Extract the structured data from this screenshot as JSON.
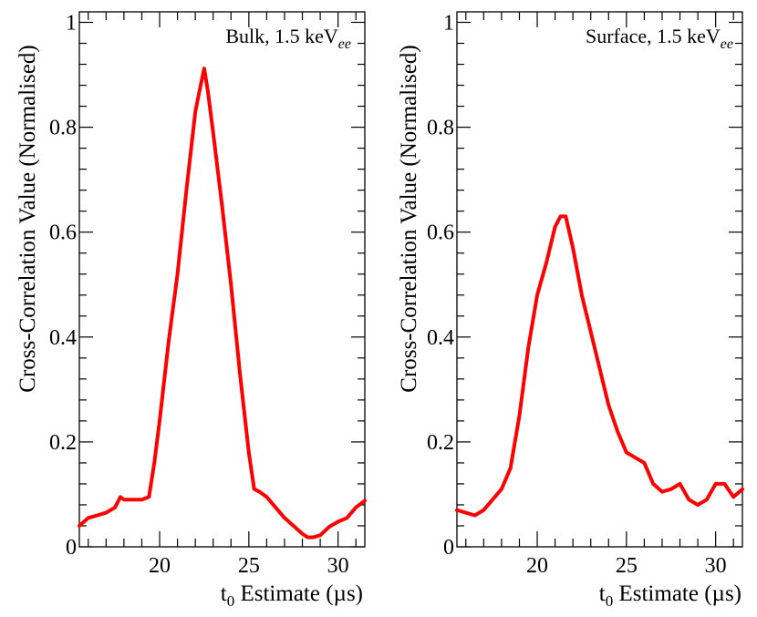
{
  "chart_data": [
    {
      "type": "line",
      "annotation": "Bulk, 1.5 keV",
      "annotation_subscript": "ee",
      "ylabel": "Cross-Correlation Value (Normalised)",
      "xlabel_main": "t",
      "xlabel_sub": "0",
      "xlabel_rest": " Estimate (µs)",
      "xlim": [
        15.5,
        31.5
      ],
      "ylim": [
        0,
        1.02
      ],
      "xticks": [
        20,
        25,
        30
      ],
      "yticks": [
        0,
        0.2,
        0.4,
        0.6,
        0.8,
        1
      ],
      "ytick_labels": [
        "0",
        "0.2",
        "0.4",
        "0.6",
        "0.8",
        "1"
      ],
      "grid": false,
      "color": "#ff0000",
      "x": [
        15.5,
        16.0,
        16.5,
        17.0,
        17.5,
        17.8,
        18.0,
        18.5,
        19.0,
        19.4,
        19.7,
        20.0,
        20.5,
        21.0,
        21.5,
        22.0,
        22.3,
        22.5,
        22.7,
        23.0,
        23.5,
        24.0,
        24.5,
        25.0,
        25.3,
        25.6,
        26.0,
        26.5,
        27.0,
        27.5,
        28.0,
        28.3,
        28.6,
        29.0,
        29.5,
        30.0,
        30.5,
        31.0,
        31.5
      ],
      "y": [
        0.04,
        0.055,
        0.06,
        0.065,
        0.075,
        0.095,
        0.09,
        0.09,
        0.09,
        0.095,
        0.16,
        0.24,
        0.39,
        0.52,
        0.68,
        0.83,
        0.88,
        0.912,
        0.87,
        0.79,
        0.65,
        0.5,
        0.33,
        0.18,
        0.11,
        0.105,
        0.095,
        0.075,
        0.055,
        0.04,
        0.025,
        0.018,
        0.018,
        0.022,
        0.038,
        0.048,
        0.055,
        0.075,
        0.088
      ]
    },
    {
      "type": "line",
      "annotation": "Surface, 1.5 keV",
      "annotation_subscript": "ee",
      "ylabel": "Cross-Correlation Value (Normalised)",
      "xlabel_main": "t",
      "xlabel_sub": "0",
      "xlabel_rest": " Estimate (µs)",
      "xlim": [
        15.5,
        31.5
      ],
      "ylim": [
        0,
        1.02
      ],
      "xticks": [
        20,
        25,
        30
      ],
      "yticks": [
        0,
        0.2,
        0.4,
        0.6,
        0.8,
        1
      ],
      "ytick_labels": [
        "0",
        "0.2",
        "0.4",
        "0.6",
        "0.8",
        "1"
      ],
      "grid": false,
      "color": "#ff0000",
      "x": [
        15.5,
        16.0,
        16.5,
        17.0,
        17.5,
        18.0,
        18.5,
        19.0,
        19.5,
        20.0,
        20.5,
        21.0,
        21.3,
        21.6,
        22.0,
        22.5,
        23.0,
        23.5,
        24.0,
        24.5,
        25.0,
        25.5,
        26.0,
        26.5,
        27.0,
        27.5,
        28.0,
        28.5,
        29.0,
        29.5,
        30.0,
        30.5,
        31.0,
        31.5
      ],
      "y": [
        0.07,
        0.065,
        0.06,
        0.07,
        0.09,
        0.11,
        0.15,
        0.25,
        0.38,
        0.48,
        0.54,
        0.61,
        0.63,
        0.63,
        0.57,
        0.48,
        0.41,
        0.34,
        0.27,
        0.22,
        0.18,
        0.17,
        0.16,
        0.12,
        0.105,
        0.11,
        0.12,
        0.09,
        0.08,
        0.09,
        0.12,
        0.12,
        0.095,
        0.11
      ]
    }
  ]
}
